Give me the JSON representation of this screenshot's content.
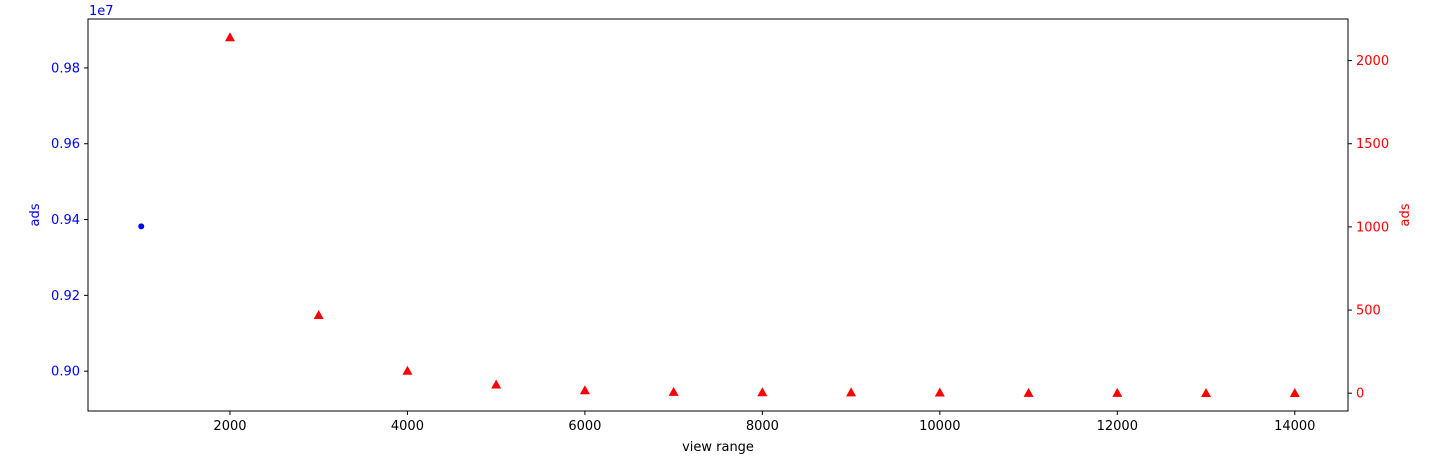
{
  "chart_data": {
    "type": "scatter",
    "xlabel": "view range",
    "xlim": [
      400,
      14600
    ],
    "x_ticks": [
      2000,
      4000,
      6000,
      8000,
      10000,
      12000,
      14000
    ],
    "x_tick_labels": [
      "2000",
      "4000",
      "6000",
      "8000",
      "10000",
      "12000",
      "14000"
    ],
    "y_left": {
      "label": "ads",
      "color": "#0000ff",
      "offset_label": "1e7",
      "lim": [
        0.8895,
        0.9929
      ],
      "ticks": [
        0.9,
        0.92,
        0.94,
        0.96,
        0.98
      ],
      "tick_labels": [
        "0.90",
        "0.92",
        "0.94",
        "0.96",
        "0.98"
      ]
    },
    "y_right": {
      "label": "ads",
      "color": "#ff0000",
      "lim": [
        -107,
        2250
      ],
      "ticks": [
        0,
        500,
        1000,
        1500,
        2000
      ],
      "tick_labels": [
        "0",
        "500",
        "1000",
        "1500",
        "2000"
      ]
    },
    "series": [
      {
        "axis": "left",
        "marker": "circle",
        "color": "#0000ff",
        "points": [
          {
            "x": 1000,
            "y": 0.9382
          }
        ]
      },
      {
        "axis": "right",
        "marker": "triangle",
        "color": "#ff0000",
        "points": [
          {
            "x": 2000,
            "y": 2140
          },
          {
            "x": 3000,
            "y": 470
          },
          {
            "x": 4000,
            "y": 135
          },
          {
            "x": 5000,
            "y": 52
          },
          {
            "x": 6000,
            "y": 18
          },
          {
            "x": 7000,
            "y": 8
          },
          {
            "x": 8000,
            "y": 6
          },
          {
            "x": 9000,
            "y": 5
          },
          {
            "x": 10000,
            "y": 4
          },
          {
            "x": 11000,
            "y": 2
          },
          {
            "x": 12000,
            "y": 2
          },
          {
            "x": 13000,
            "y": 1
          },
          {
            "x": 14000,
            "y": 1
          }
        ]
      }
    ]
  }
}
